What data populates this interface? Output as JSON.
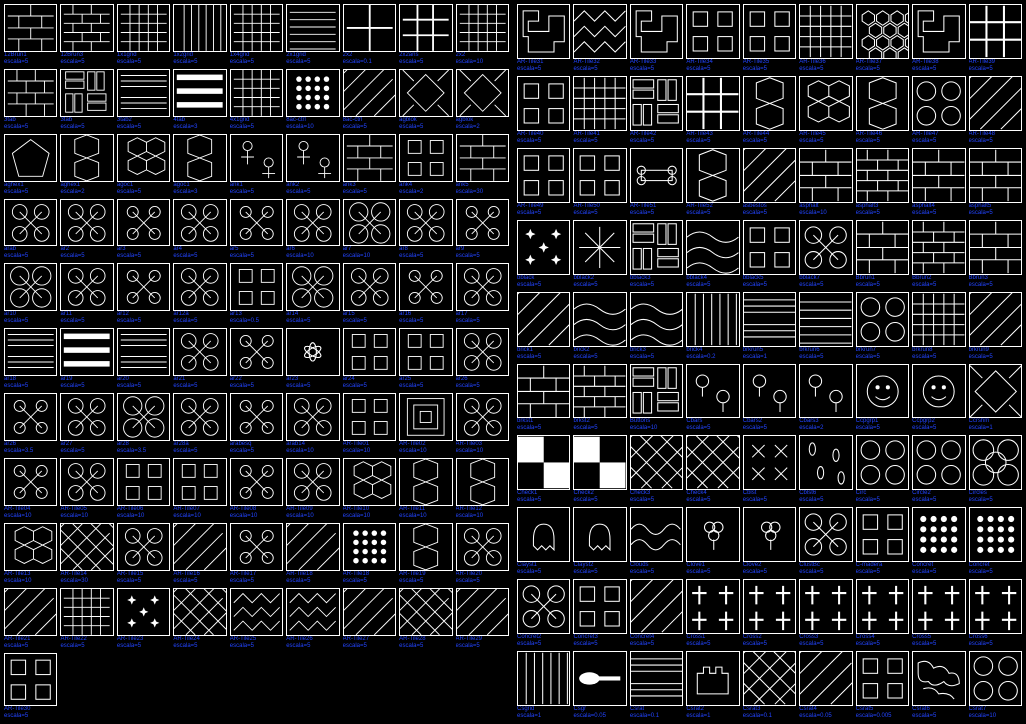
{
  "label_color": "#2244ff",
  "border_color": "#ffffff",
  "background": "#000000",
  "left_panel": [
    {
      "name": "12Brun1",
      "scale": "escala=5",
      "p": "brick"
    },
    {
      "name": "12Brun3",
      "scale": "escala=5",
      "p": "brick2"
    },
    {
      "name": "1x1grid",
      "scale": "escala=5",
      "p": "grid"
    },
    {
      "name": "1x2grid",
      "scale": "escala=5",
      "p": "vgrid"
    },
    {
      "name": "1x4grid",
      "scale": "escala=5",
      "p": "grid"
    },
    {
      "name": "2x1grid",
      "scale": "escala=5",
      "p": "hgrid"
    },
    {
      "name": "2x2",
      "scale": "escala=0.1",
      "p": "cross"
    },
    {
      "name": "2x2ans",
      "scale": "escala=5",
      "p": "grid2"
    },
    {
      "name": "2x2",
      "scale": "escala=10",
      "p": "grid"
    },
    {
      "name": "3tab",
      "scale": "escala=5",
      "p": "shingle"
    },
    {
      "name": "3tab",
      "scale": "escala=5",
      "p": "parquet"
    },
    {
      "name": "3tab2",
      "scale": "escala=5",
      "p": "bars"
    },
    {
      "name": "4tab",
      "scale": "escala=3",
      "p": "bars2"
    },
    {
      "name": "4x1grid",
      "scale": "escala=5",
      "p": "grid"
    },
    {
      "name": "8ac-ctrl",
      "scale": "escala=10",
      "p": "dots"
    },
    {
      "name": "8ac-ctrl",
      "scale": "escala=5",
      "p": "diag"
    },
    {
      "name": "agblok",
      "scale": "escala=5",
      "p": "diamond"
    },
    {
      "name": "agblok",
      "scale": "escala=2",
      "p": "diamond"
    },
    {
      "name": "aghex1",
      "scale": "escala=5",
      "p": "penta"
    },
    {
      "name": "aghex1",
      "scale": "escala=2",
      "p": "hex"
    },
    {
      "name": "agoc1",
      "scale": "escala=5",
      "p": "hex2"
    },
    {
      "name": "agoc1",
      "scale": "escala=3",
      "p": "hex"
    },
    {
      "name": "ank1",
      "scale": "escala=5",
      "p": "ankh"
    },
    {
      "name": "ank2",
      "scale": "escala=5",
      "p": "ankh"
    },
    {
      "name": "ank3",
      "scale": "escala=5",
      "p": "brick"
    },
    {
      "name": "ank4",
      "scale": "escala=2",
      "p": "squares"
    },
    {
      "name": "ank5",
      "scale": "escala=30",
      "p": "brick"
    },
    {
      "name": "arab",
      "scale": "escala=5",
      "p": "orn"
    },
    {
      "name": "ar2",
      "scale": "escala=5",
      "p": "orn"
    },
    {
      "name": "ar3",
      "scale": "escala=5",
      "p": "orn2"
    },
    {
      "name": "ar4",
      "scale": "escala=5",
      "p": "orn"
    },
    {
      "name": "ar5",
      "scale": "escala=5",
      "p": "orn2"
    },
    {
      "name": "ar6",
      "scale": "escala=10",
      "p": "orn"
    },
    {
      "name": "ar7",
      "scale": "escala=10",
      "p": "orn3"
    },
    {
      "name": "ar8",
      "scale": "escala=5",
      "p": "orn"
    },
    {
      "name": "ar9",
      "scale": "escala=5",
      "p": "orn2"
    },
    {
      "name": "ar10",
      "scale": "escala=5",
      "p": "orn3"
    },
    {
      "name": "ar11",
      "scale": "escala=5",
      "p": "orn"
    },
    {
      "name": "ar12",
      "scale": "escala=5",
      "p": "orn2"
    },
    {
      "name": "ar12a",
      "scale": "escala=5",
      "p": "orn"
    },
    {
      "name": "ar13",
      "scale": "escala=0.5",
      "p": "squares"
    },
    {
      "name": "ar14",
      "scale": "escala=5",
      "p": "orn3"
    },
    {
      "name": "ar15",
      "scale": "escala=5",
      "p": "orn"
    },
    {
      "name": "ar16",
      "scale": "escala=5",
      "p": "orn2"
    },
    {
      "name": "ar17",
      "scale": "escala=5",
      "p": "orn"
    },
    {
      "name": "ar18",
      "scale": "escala=5",
      "p": "bars"
    },
    {
      "name": "ar19",
      "scale": "escala=5",
      "p": "bars2"
    },
    {
      "name": "ar20",
      "scale": "escala=5",
      "p": "bars"
    },
    {
      "name": "ar21",
      "scale": "escala=5",
      "p": "orn"
    },
    {
      "name": "ar22",
      "scale": "escala=5",
      "p": "orn2"
    },
    {
      "name": "ar23",
      "scale": "escala=5",
      "p": "flower"
    },
    {
      "name": "ar24",
      "scale": "escala=5",
      "p": "squares"
    },
    {
      "name": "ar25",
      "scale": "escala=5",
      "p": "squares"
    },
    {
      "name": "ar26",
      "scale": "escala=5",
      "p": "orn"
    },
    {
      "name": "ar26",
      "scale": "escala=3.5",
      "p": "orn2"
    },
    {
      "name": "ar27",
      "scale": "escala=5",
      "p": "orn"
    },
    {
      "name": "ar28",
      "scale": "escala=3.5",
      "p": "orn3"
    },
    {
      "name": "ar28a",
      "scale": "escala=5",
      "p": "orn"
    },
    {
      "name": "arabesq",
      "scale": "escala=5",
      "p": "orn2"
    },
    {
      "name": "arab14",
      "scale": "escala=10",
      "p": "orn"
    },
    {
      "name": "AR-Tile01",
      "scale": "escala=10",
      "p": "squares"
    },
    {
      "name": "AR-Tile02",
      "scale": "escala=10",
      "p": "conc"
    },
    {
      "name": "AR-Tile03",
      "scale": "escala=10",
      "p": "orn"
    },
    {
      "name": "AR-Tile04",
      "scale": "escala=10",
      "p": "orn2"
    },
    {
      "name": "AR-Tile05",
      "scale": "escala=10",
      "p": "orn"
    },
    {
      "name": "AR-Tile06",
      "scale": "escala=10",
      "p": "squares"
    },
    {
      "name": "AR-Tile07",
      "scale": "escala=10",
      "p": "squares"
    },
    {
      "name": "AR-Tile08",
      "scale": "escala=10",
      "p": "orn2"
    },
    {
      "name": "AR-Tile09",
      "scale": "escala=10",
      "p": "orn"
    },
    {
      "name": "AR-Tile10",
      "scale": "escala=10",
      "p": "hex2"
    },
    {
      "name": "AR-Tile11",
      "scale": "escala=10",
      "p": "hex"
    },
    {
      "name": "AR-Tile12",
      "scale": "escala=10",
      "p": "hex"
    },
    {
      "name": "AR-Tile13",
      "scale": "escala=10",
      "p": "hex2"
    },
    {
      "name": "AR-Tile14",
      "scale": "escala=30",
      "p": "diag2"
    },
    {
      "name": "AR-Tile15",
      "scale": "escala=5",
      "p": "orn"
    },
    {
      "name": "AR-Tile16",
      "scale": "escala=5",
      "p": "diag"
    },
    {
      "name": "AR-Tile17",
      "scale": "escala=5",
      "p": "orn2"
    },
    {
      "name": "AR-Tile18",
      "scale": "escala=5",
      "p": "diag"
    },
    {
      "name": "AR-Tile18",
      "scale": "escala=5",
      "p": "dots"
    },
    {
      "name": "AR-Tile19",
      "scale": "escala=5",
      "p": "hex"
    },
    {
      "name": "AR-Tile20",
      "scale": "escala=5",
      "p": "orn"
    },
    {
      "name": "AR-Tile21",
      "scale": "escala=5",
      "p": "diag"
    },
    {
      "name": "AR-Tile22",
      "scale": "escala=5",
      "p": "grid"
    },
    {
      "name": "AR-Tile23",
      "scale": "escala=5",
      "p": "stars"
    },
    {
      "name": "AR-Tile24",
      "scale": "escala=5",
      "p": "diag2"
    },
    {
      "name": "AR-Tile25",
      "scale": "escala=5",
      "p": "zigzag"
    },
    {
      "name": "AR-Tile26",
      "scale": "escala=5",
      "p": "zigzag"
    },
    {
      "name": "AR-Tile27",
      "scale": "escala=5",
      "p": "diag"
    },
    {
      "name": "AR-Tile28",
      "scale": "escala=5",
      "p": "diag2"
    },
    {
      "name": "AR-Tile29",
      "scale": "escala=5",
      "p": "diag"
    },
    {
      "name": "AR-Tile30",
      "scale": "escala=5",
      "p": "squares"
    }
  ],
  "right_panel": [
    {
      "name": "AR-Tile31",
      "scale": "escala=5",
      "p": "maze"
    },
    {
      "name": "AR-Tile32",
      "scale": "escala=5",
      "p": "zigzag"
    },
    {
      "name": "AR-Tile33",
      "scale": "escala=5",
      "p": "maze"
    },
    {
      "name": "AR-Tile34",
      "scale": "escala=5",
      "p": "squares"
    },
    {
      "name": "AR-Tile35",
      "scale": "escala=5",
      "p": "squares"
    },
    {
      "name": "AR-Tile36",
      "scale": "escala=5",
      "p": "grid"
    },
    {
      "name": "AR-Tile37",
      "scale": "escala=5",
      "p": "honey"
    },
    {
      "name": "AR-Tile38",
      "scale": "escala=5",
      "p": "maze"
    },
    {
      "name": "AR-Tile39",
      "scale": "escala=5",
      "p": "grid2"
    },
    {
      "name": "AR-Tile40",
      "scale": "escala=5",
      "p": "squares"
    },
    {
      "name": "AR-Tile41",
      "scale": "escala=5",
      "p": "grid"
    },
    {
      "name": "AR-Tile42",
      "scale": "escala=5",
      "p": "parquet"
    },
    {
      "name": "AR-Tile43",
      "scale": "escala=5",
      "p": "grid2"
    },
    {
      "name": "AR-Tile44",
      "scale": "escala=5",
      "p": "hex"
    },
    {
      "name": "AR-Tile45",
      "scale": "escala=5",
      "p": "hex2"
    },
    {
      "name": "AR-Tile46",
      "scale": "escala=5",
      "p": "hex"
    },
    {
      "name": "AR-Tile47",
      "scale": "escala=5",
      "p": "circles"
    },
    {
      "name": "AR-Tile48",
      "scale": "escala=5",
      "p": "diag"
    },
    {
      "name": "AR-Tile49",
      "scale": "escala=5",
      "p": "squares"
    },
    {
      "name": "AR-Tile50",
      "scale": "escala=5",
      "p": "squares"
    },
    {
      "name": "AR-Tile51",
      "scale": "escala=5",
      "p": "bone"
    },
    {
      "name": "AR-Tile52",
      "scale": "escala=5",
      "p": "hex"
    },
    {
      "name": "asbestos",
      "scale": "escala=5",
      "p": "diag"
    },
    {
      "name": "asphalt",
      "scale": "escala=10",
      "p": "brick"
    },
    {
      "name": "asphalt3",
      "scale": "escala=5",
      "p": "brick2"
    },
    {
      "name": "asphalt4",
      "scale": "escala=5",
      "p": "brick"
    },
    {
      "name": "asphalt5",
      "scale": "escala=5",
      "p": "brick"
    },
    {
      "name": "bblack",
      "scale": "escala=5",
      "p": "stars"
    },
    {
      "name": "bblack2",
      "scale": "escala=5",
      "p": "burst"
    },
    {
      "name": "bblack3",
      "scale": "escala=5",
      "p": "parquet"
    },
    {
      "name": "bblack4",
      "scale": "escala=5",
      "p": "waves"
    },
    {
      "name": "bblack5",
      "scale": "escala=5",
      "p": "squares"
    },
    {
      "name": "bblack7",
      "scale": "escala=5",
      "p": "orn"
    },
    {
      "name": "Bbrun1",
      "scale": "escala=5",
      "p": "brick"
    },
    {
      "name": "Bbrun2",
      "scale": "escala=5",
      "p": "brick2"
    },
    {
      "name": "Bbrun3",
      "scale": "escala=5",
      "p": "brick"
    },
    {
      "name": "brick1",
      "scale": "escala=5",
      "p": "diag"
    },
    {
      "name": "brick2",
      "scale": "escala=5",
      "p": "waves"
    },
    {
      "name": "brick3",
      "scale": "escala=5",
      "p": "waves"
    },
    {
      "name": "brick4",
      "scale": "escala=0.2",
      "p": "vgrid"
    },
    {
      "name": "brkrun5",
      "scale": "escala=1",
      "p": "bars"
    },
    {
      "name": "brkrun6",
      "scale": "escala=5",
      "p": "hgrid"
    },
    {
      "name": "brkrun7",
      "scale": "escala=5",
      "p": "circles"
    },
    {
      "name": "brkrun8",
      "scale": "escala=5",
      "p": "grid"
    },
    {
      "name": "brkrun9",
      "scale": "escala=5",
      "p": "diag"
    },
    {
      "name": "brkst1",
      "scale": "escala=5",
      "p": "brick"
    },
    {
      "name": "brkst2",
      "scale": "escala=5",
      "p": "brick2"
    },
    {
      "name": "Buttons",
      "scale": "escala=10",
      "p": "parquet"
    },
    {
      "name": "Cbars",
      "scale": "escala=5",
      "p": "balloon"
    },
    {
      "name": "Cbars2",
      "scale": "escala=5",
      "p": "balloon"
    },
    {
      "name": "Cbars3",
      "scale": "escala=2",
      "p": "balloon"
    },
    {
      "name": "Ccpgrp1",
      "scale": "escala=5",
      "p": "face"
    },
    {
      "name": "Ccpgrp2",
      "scale": "escala=5",
      "p": "face"
    },
    {
      "name": "Ccrshm",
      "scale": "escala=1",
      "p": "diamond"
    },
    {
      "name": "Check1",
      "scale": "escala=5",
      "p": "check"
    },
    {
      "name": "Check2",
      "scale": "escala=5",
      "p": "check"
    },
    {
      "name": "Check3",
      "scale": "escala=5",
      "p": "diag2"
    },
    {
      "name": "Check4",
      "scale": "escala=5",
      "p": "diag2"
    },
    {
      "name": "Cblst",
      "scale": "escala=5",
      "p": "x"
    },
    {
      "name": "Cblst6",
      "scale": "escala=5",
      "p": "rice"
    },
    {
      "name": "Circ",
      "scale": "escala=5",
      "p": "circles"
    },
    {
      "name": "Circle2",
      "scale": "escala=5",
      "p": "circles"
    },
    {
      "name": "Circles",
      "scale": "escala=5",
      "p": "circles2"
    },
    {
      "name": "Clayst1",
      "scale": "escala=5",
      "p": "ghost"
    },
    {
      "name": "Clayst2",
      "scale": "escala=5",
      "p": "ghost"
    },
    {
      "name": "Clouds",
      "scale": "escala=5",
      "p": "wave2"
    },
    {
      "name": "Clove1",
      "scale": "escala=5",
      "p": "clover"
    },
    {
      "name": "Clove2",
      "scale": "escala=5",
      "p": "clover"
    },
    {
      "name": "ClustBc",
      "scale": "escala=5",
      "p": "orn"
    },
    {
      "name": "C-madera",
      "scale": "escala=5",
      "p": "squares"
    },
    {
      "name": "Concret",
      "scale": "escala=5",
      "p": "dots"
    },
    {
      "name": "Concret",
      "scale": "escala=5",
      "p": "dots"
    },
    {
      "name": "Concret2",
      "scale": "escala=5",
      "p": "orn"
    },
    {
      "name": "Concret3",
      "scale": "escala=5",
      "p": "squares"
    },
    {
      "name": "Concret4",
      "scale": "escala=5",
      "p": "diag"
    },
    {
      "name": "Cross1",
      "scale": "escala=5",
      "p": "crosses"
    },
    {
      "name": "Cross2",
      "scale": "escala=5",
      "p": "crosses"
    },
    {
      "name": "Cross3",
      "scale": "escala=5",
      "p": "crosses"
    },
    {
      "name": "Cross4",
      "scale": "escala=5",
      "p": "crosses"
    },
    {
      "name": "Cross5",
      "scale": "escala=5",
      "p": "crosses"
    },
    {
      "name": "Cross6",
      "scale": "escala=5",
      "p": "crosses"
    },
    {
      "name": "Csgrid",
      "scale": "escala=1",
      "p": "vgrid"
    },
    {
      "name": "Csgr",
      "scale": "escala=0.05",
      "p": "spoon"
    },
    {
      "name": "Csrat",
      "scale": "escala=0.1",
      "p": "bars"
    },
    {
      "name": "Csrat2",
      "scale": "escala=1",
      "p": "castle"
    },
    {
      "name": "Csrat3",
      "scale": "escala=0.1",
      "p": "diag2"
    },
    {
      "name": "Csrat4",
      "scale": "escala=0.05",
      "p": "diag"
    },
    {
      "name": "Csrat5",
      "scale": "escala=0.005",
      "p": "squares"
    },
    {
      "name": "Csrat6",
      "scale": "escala=5",
      "p": "cells"
    },
    {
      "name": "Csrat7",
      "scale": "escala=10",
      "p": "circles"
    }
  ]
}
